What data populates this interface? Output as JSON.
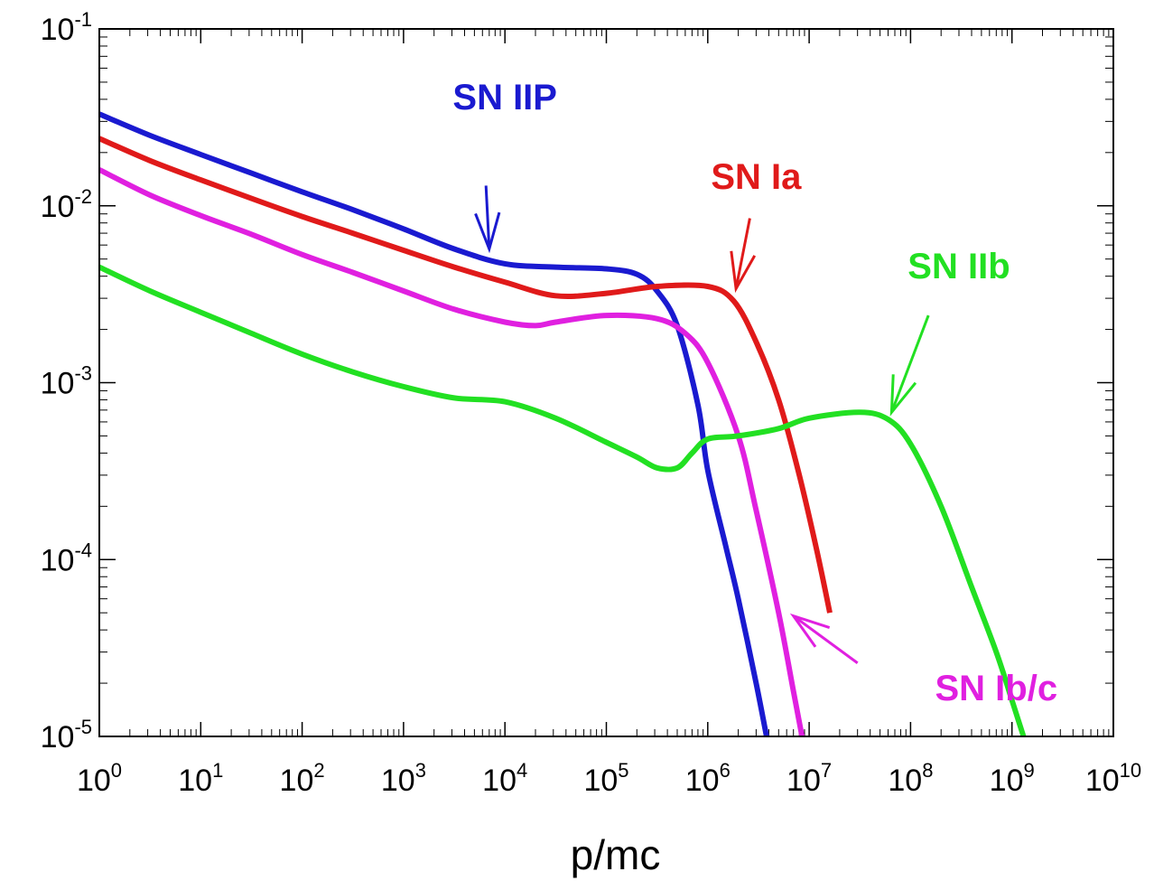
{
  "chart_data": {
    "type": "line",
    "title": "",
    "xlabel": "p/mc",
    "ylabel": "",
    "xscale": "log",
    "yscale": "log",
    "xlim": [
      1,
      10000000000
    ],
    "ylim": [
      1e-05,
      0.1
    ],
    "x_ticks": [
      {
        "value": 1,
        "base": "10",
        "exp": "0"
      },
      {
        "value": 10,
        "base": "10",
        "exp": "1"
      },
      {
        "value": 100,
        "base": "10",
        "exp": "2"
      },
      {
        "value": 1000,
        "base": "10",
        "exp": "3"
      },
      {
        "value": 10000,
        "base": "10",
        "exp": "4"
      },
      {
        "value": 100000,
        "base": "10",
        "exp": "5"
      },
      {
        "value": 1000000,
        "base": "10",
        "exp": "6"
      },
      {
        "value": 10000000,
        "base": "10",
        "exp": "7"
      },
      {
        "value": 100000000,
        "base": "10",
        "exp": "8"
      },
      {
        "value": 1000000000,
        "base": "10",
        "exp": "9"
      },
      {
        "value": 10000000000,
        "base": "10",
        "exp": "10"
      }
    ],
    "y_ticks": [
      {
        "value": 0.1,
        "base": "10",
        "exp": "-1"
      },
      {
        "value": 0.01,
        "base": "10",
        "exp": "-2"
      },
      {
        "value": 0.001,
        "base": "10",
        "exp": "-3"
      },
      {
        "value": 0.0001,
        "base": "10",
        "exp": "-4"
      },
      {
        "value": 1e-05,
        "base": "10",
        "exp": "-5"
      }
    ],
    "grid": false,
    "legend": "none (series labelled with arrows)",
    "series": [
      {
        "name": "SN IIP",
        "color": "#1a1ad0",
        "x": [
          1,
          3.16,
          10,
          31.6,
          100,
          316,
          1000,
          3160,
          10000,
          31600,
          100000,
          200000,
          316000,
          500000,
          800000,
          1000000,
          1500000,
          2000000,
          3000000,
          3800000
        ],
        "y": [
          0.033,
          0.025,
          0.0195,
          0.0153,
          0.012,
          0.0095,
          0.0074,
          0.0057,
          0.0047,
          0.0045,
          0.0044,
          0.0041,
          0.0033,
          0.0021,
          0.00075,
          0.00032,
          0.00012,
          6e-05,
          2e-05,
          1e-05
        ]
      },
      {
        "name": "SN Ia",
        "color": "#e01a1a",
        "x": [
          1,
          3.16,
          10,
          31.6,
          100,
          316,
          1000,
          3160,
          10000,
          31600,
          100000,
          316000,
          1000000,
          1800000,
          3000000,
          5000000,
          8000000,
          12000000,
          16000000
        ],
        "y": [
          0.024,
          0.018,
          0.014,
          0.011,
          0.0087,
          0.007,
          0.0056,
          0.0045,
          0.0037,
          0.0031,
          0.0032,
          0.0035,
          0.0035,
          0.0029,
          0.0017,
          0.0008,
          0.0003,
          0.00011,
          5e-05
        ]
      },
      {
        "name": "SN Ib/c",
        "color": "#e020e0",
        "x": [
          1,
          3.16,
          10,
          31.6,
          100,
          316,
          1000,
          3160,
          10000,
          20000,
          31600,
          100000,
          316000,
          600000,
          1000000,
          2000000,
          3000000,
          5000000,
          7000000,
          8500000
        ],
        "y": [
          0.016,
          0.0115,
          0.0088,
          0.0069,
          0.0053,
          0.0042,
          0.0033,
          0.0026,
          0.0022,
          0.0021,
          0.0022,
          0.0024,
          0.0023,
          0.0019,
          0.0013,
          0.0005,
          0.00019,
          5e-05,
          1.8e-05,
          1e-05
        ]
      },
      {
        "name": "SN IIb",
        "color": "#22e022",
        "x": [
          1,
          3.16,
          10,
          31.6,
          100,
          316,
          1000,
          3160,
          10000,
          31600,
          100000,
          200000,
          316000,
          500000,
          700000,
          1000000,
          2000000,
          5000000,
          10000000,
          31600000,
          60000000,
          100000000,
          200000000,
          400000000,
          700000000,
          1000000000,
          1300000000
        ],
        "y": [
          0.0045,
          0.0033,
          0.0025,
          0.0019,
          0.00145,
          0.00115,
          0.00095,
          0.00082,
          0.00078,
          0.00063,
          0.00046,
          0.00038,
          0.00033,
          0.00033,
          0.0004,
          0.00048,
          0.0005,
          0.00055,
          0.00063,
          0.00068,
          0.00062,
          0.00045,
          0.0002,
          7e-05,
          3e-05,
          1.6e-05,
          1e-05
        ]
      }
    ],
    "annotations": [
      {
        "text": "SN IIP",
        "color": "#1a1ad0",
        "label_x": 10000,
        "label_y": 0.035,
        "arrow_from": [
          6500,
          0.013
        ],
        "arrow_to": [
          7000,
          0.0057
        ]
      },
      {
        "text": "SN Ia",
        "color": "#e01a1a",
        "label_x": 3000000,
        "label_y": 0.0125,
        "arrow_from": [
          2600000,
          0.0085
        ],
        "arrow_to": [
          1900000,
          0.0034
        ]
      },
      {
        "text": "SN IIb",
        "color": "#22e022",
        "label_x": 300000000,
        "label_y": 0.0039,
        "arrow_from": [
          150000000,
          0.0024
        ],
        "arrow_to": [
          65000000,
          0.00068
        ]
      },
      {
        "text": "SN Ib/c",
        "color": "#e020e0",
        "label_x": 700000000,
        "label_y": 1.6e-05,
        "arrow_from": [
          30000000,
          2.6e-05
        ],
        "arrow_to": [
          7000000,
          4.8e-05
        ]
      }
    ]
  }
}
